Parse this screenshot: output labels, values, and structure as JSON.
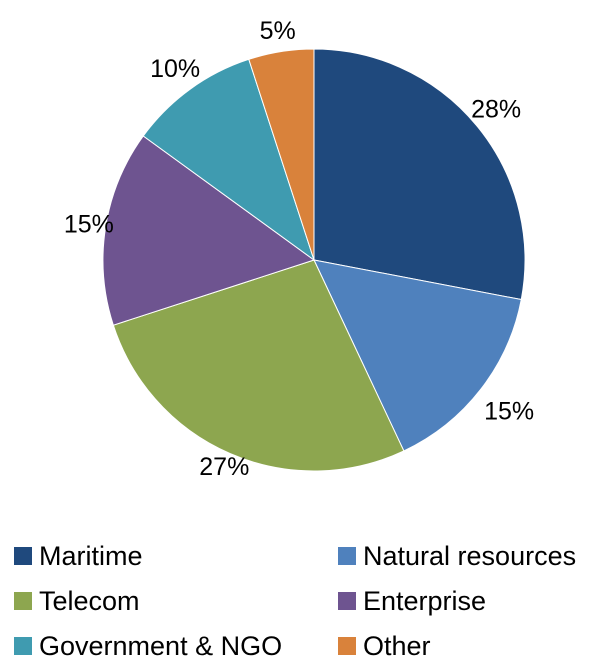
{
  "chart_data": {
    "type": "pie",
    "categories": [
      "Maritime",
      "Natural resources",
      "Telecom",
      "Enterprise",
      "Government & NGO",
      "Other"
    ],
    "values": [
      28,
      15,
      27,
      15,
      10,
      5
    ],
    "data_labels": [
      "28%",
      "15%",
      "27%",
      "15%",
      "10%",
      "5%"
    ],
    "colors": [
      "#1F497D",
      "#4F81BD",
      "#8DA64F",
      "#6E5490",
      "#3F9BB0",
      "#D9823B"
    ],
    "title": "",
    "start_angle": "12 o'clock",
    "direction": "clockwise",
    "legend": {
      "position": "bottom",
      "columns": 2,
      "items": [
        "Maritime",
        "Natural resources",
        "Telecom",
        "Enterprise",
        "Government & NGO",
        "Other"
      ]
    }
  }
}
